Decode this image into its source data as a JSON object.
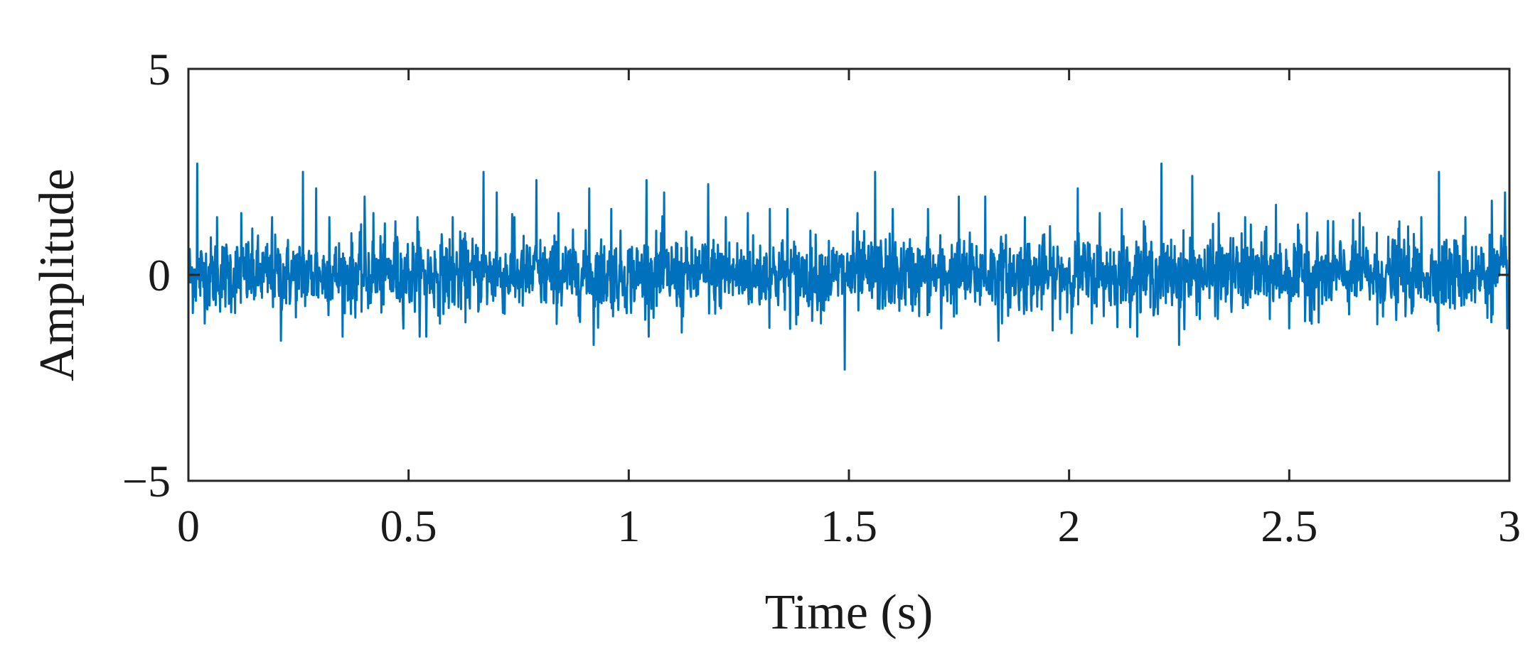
{
  "chart_data": {
    "type": "line",
    "title": "",
    "xlabel": "Time (s)",
    "ylabel": "Amplitude",
    "xlim": [
      0,
      3
    ],
    "ylim": [
      -5,
      5
    ],
    "xticks": [
      0,
      0.5,
      1,
      1.5,
      2,
      2.5,
      3
    ],
    "xtick_labels": [
      "0",
      "0.5",
      "1",
      "1.5",
      "2",
      "2.5",
      "3"
    ],
    "yticks": [
      -5,
      0,
      5
    ],
    "ytick_labels": [
      "−5",
      "0",
      "5"
    ],
    "grid": false,
    "series": [
      {
        "color": "#0072BD",
        "sampling": {
          "t_start": 0,
          "t_end": 3,
          "n_points": 3000
        },
        "noise": {
          "mean": 0,
          "std": 0.45
        },
        "peaks": [
          {
            "x": 0.02,
            "y": 2.7
          },
          {
            "x": 0.065,
            "y": 1.4
          },
          {
            "x": 0.12,
            "y": 1.5
          },
          {
            "x": 0.19,
            "y": 1.4
          },
          {
            "x": 0.21,
            "y": -1.6
          },
          {
            "x": 0.26,
            "y": 2.5
          },
          {
            "x": 0.29,
            "y": 2.1
          },
          {
            "x": 0.32,
            "y": 1.4
          },
          {
            "x": 0.4,
            "y": 1.9
          },
          {
            "x": 0.42,
            "y": 1.5
          },
          {
            "x": 0.47,
            "y": 1.3
          },
          {
            "x": 0.52,
            "y": 1.4
          },
          {
            "x": 0.54,
            "y": -1.5
          },
          {
            "x": 0.6,
            "y": 1.4
          },
          {
            "x": 0.67,
            "y": 2.5
          },
          {
            "x": 0.7,
            "y": 2.0
          },
          {
            "x": 0.74,
            "y": 1.4
          },
          {
            "x": 0.79,
            "y": 2.3
          },
          {
            "x": 0.84,
            "y": 1.5
          },
          {
            "x": 0.91,
            "y": 2.1
          },
          {
            "x": 0.92,
            "y": -1.7
          },
          {
            "x": 0.96,
            "y": 1.6
          },
          {
            "x": 1.04,
            "y": 2.3
          },
          {
            "x": 1.08,
            "y": 2.0
          },
          {
            "x": 1.12,
            "y": -1.4
          },
          {
            "x": 1.18,
            "y": 2.2
          },
          {
            "x": 1.22,
            "y": 1.4
          },
          {
            "x": 1.27,
            "y": 1.5
          },
          {
            "x": 1.32,
            "y": 1.6
          },
          {
            "x": 1.36,
            "y": 1.6
          },
          {
            "x": 1.38,
            "y": -1.2
          },
          {
            "x": 1.49,
            "y": -2.3
          },
          {
            "x": 1.52,
            "y": 1.5
          },
          {
            "x": 1.56,
            "y": 2.5
          },
          {
            "x": 1.6,
            "y": 1.6
          },
          {
            "x": 1.68,
            "y": 1.6
          },
          {
            "x": 1.71,
            "y": -1.3
          },
          {
            "x": 1.75,
            "y": 1.9
          },
          {
            "x": 1.81,
            "y": 1.9
          },
          {
            "x": 1.84,
            "y": -1.6
          },
          {
            "x": 1.9,
            "y": 1.4
          },
          {
            "x": 2.02,
            "y": 2.1
          },
          {
            "x": 2.07,
            "y": 1.5
          },
          {
            "x": 2.12,
            "y": 1.6
          },
          {
            "x": 2.17,
            "y": 1.3
          },
          {
            "x": 2.21,
            "y": 2.7
          },
          {
            "x": 2.25,
            "y": -1.7
          },
          {
            "x": 2.28,
            "y": 2.4
          },
          {
            "x": 2.34,
            "y": 1.5
          },
          {
            "x": 2.4,
            "y": 1.4
          },
          {
            "x": 2.47,
            "y": 1.7
          },
          {
            "x": 2.5,
            "y": -1.3
          },
          {
            "x": 2.54,
            "y": 1.5
          },
          {
            "x": 2.6,
            "y": 1.3
          },
          {
            "x": 2.66,
            "y": 1.5
          },
          {
            "x": 2.7,
            "y": -1.2
          },
          {
            "x": 2.75,
            "y": 1.3
          },
          {
            "x": 2.8,
            "y": 1.4
          },
          {
            "x": 2.84,
            "y": 2.5
          },
          {
            "x": 2.9,
            "y": 1.4
          },
          {
            "x": 2.96,
            "y": 1.8
          },
          {
            "x": 2.99,
            "y": 2.0
          },
          {
            "x": 2.995,
            "y": -1.3
          }
        ]
      }
    ]
  }
}
